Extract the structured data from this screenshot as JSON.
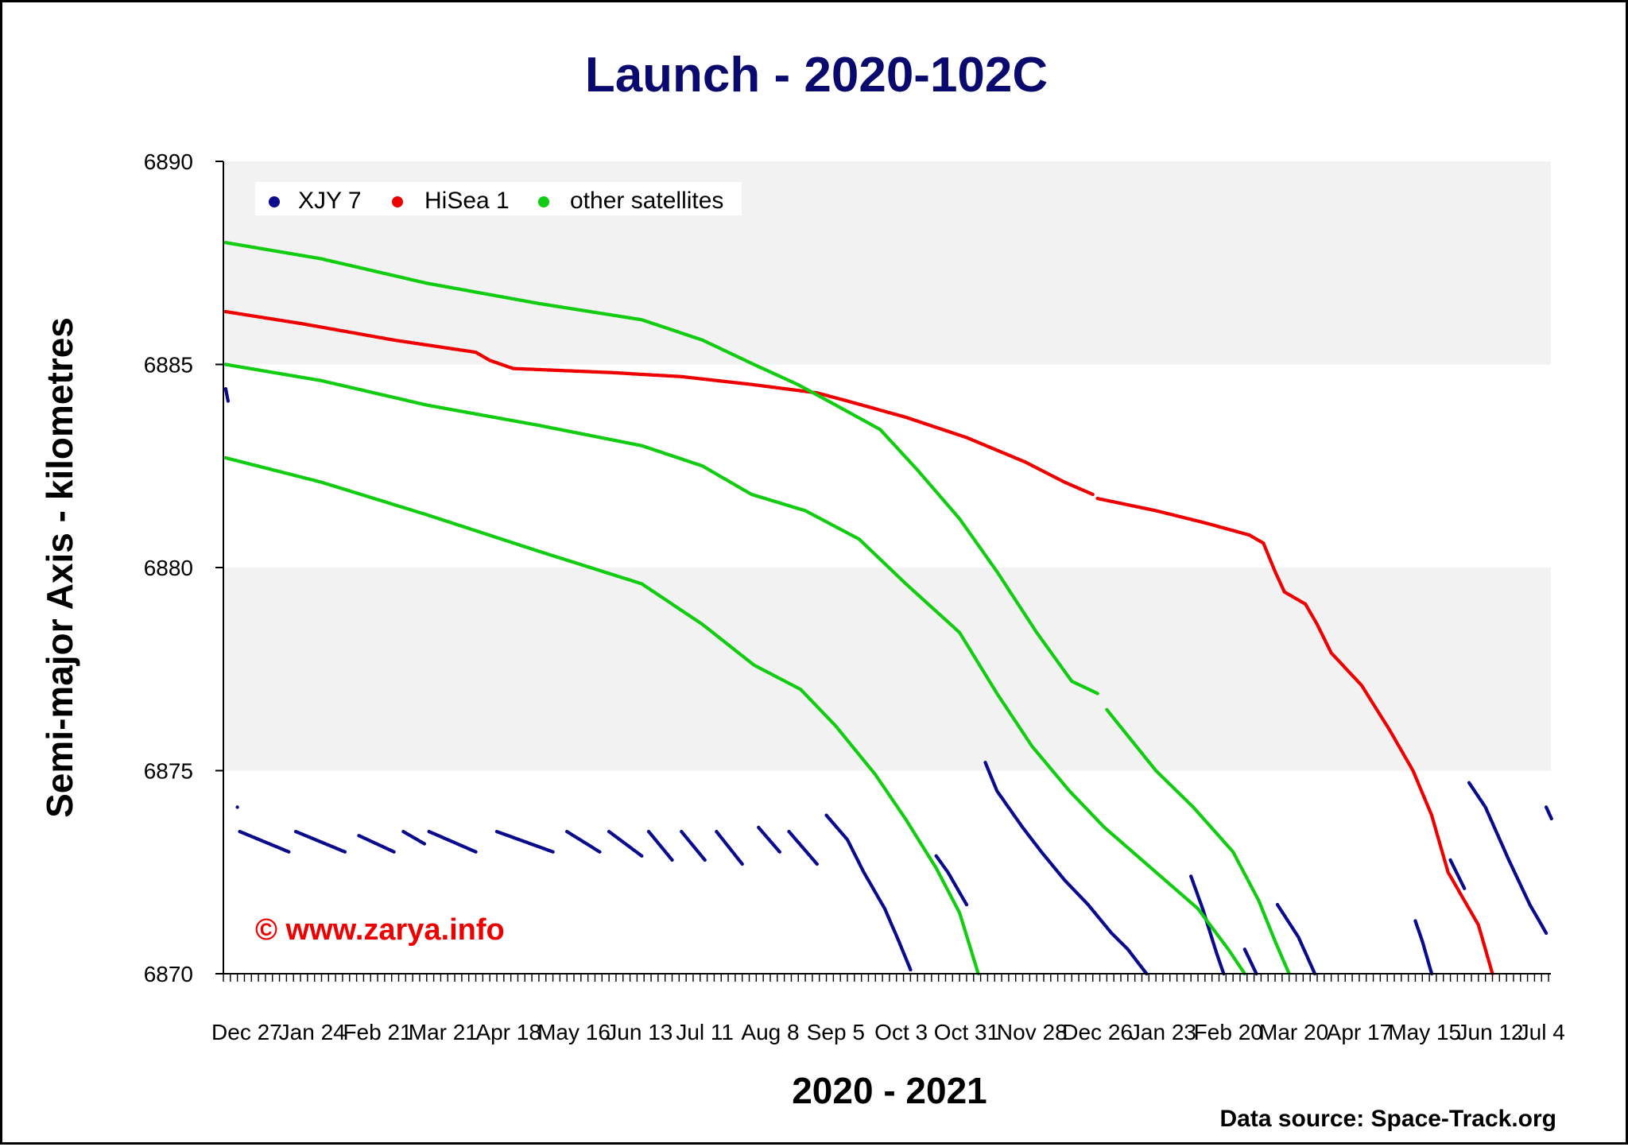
{
  "chart_data": {
    "type": "scatter",
    "title": "Launch - 2020-102C",
    "xlabel": "2020 - 2021",
    "ylabel": "Semi-major Axis - kilometres",
    "ylim": [
      6870,
      6890
    ],
    "yticks": [
      6870,
      6875,
      6880,
      6885,
      6890
    ],
    "xlim": [
      "2020-12-17",
      "2022-07-08"
    ],
    "xtick_labels": [
      {
        "date": "2020-12-27",
        "label": "Dec 27"
      },
      {
        "date": "2021-01-24",
        "label": "Jan 24"
      },
      {
        "date": "2021-02-21",
        "label": "Feb 21"
      },
      {
        "date": "2021-03-21",
        "label": "Mar 21"
      },
      {
        "date": "2021-04-18",
        "label": "Apr 18"
      },
      {
        "date": "2021-05-16",
        "label": "May 16"
      },
      {
        "date": "2021-06-13",
        "label": "Jun 13"
      },
      {
        "date": "2021-07-11",
        "label": "Jul 11"
      },
      {
        "date": "2021-08-08",
        "label": "Aug 8"
      },
      {
        "date": "2021-09-05",
        "label": "Sep 5"
      },
      {
        "date": "2021-10-03",
        "label": "Oct 3"
      },
      {
        "date": "2021-10-31",
        "label": "Oct 31"
      },
      {
        "date": "2021-11-28",
        "label": "Nov 28"
      },
      {
        "date": "2021-12-26",
        "label": "Dec 26"
      },
      {
        "date": "2022-01-23",
        "label": "Jan 23"
      },
      {
        "date": "2022-02-20",
        "label": "Feb 20"
      },
      {
        "date": "2022-03-20",
        "label": "Mar 20"
      },
      {
        "date": "2022-04-17",
        "label": "Apr 17"
      },
      {
        "date": "2022-05-15",
        "label": "May 15"
      },
      {
        "date": "2022-06-12",
        "label": "Jun 12"
      },
      {
        "date": "2022-07-04",
        "label": "Jul 4"
      }
    ],
    "grid": {
      "horizontal_bands": true,
      "band_color": "#f2f2f2"
    },
    "legend": {
      "placement": "top-left"
    },
    "series": [
      {
        "name": "XJY 7",
        "color": "#0a0a8c",
        "segments": [
          [
            [
              "2020-12-18",
              6884.4
            ],
            [
              "2020-12-19",
              6884.1
            ]
          ],
          [
            [
              "2020-12-23",
              6874.1
            ]
          ],
          [
            [
              "2020-12-24",
              6873.5
            ],
            [
              "2021-01-14",
              6873.0
            ]
          ],
          [
            [
              "2021-01-17",
              6873.5
            ],
            [
              "2021-02-07",
              6873.0
            ]
          ],
          [
            [
              "2021-02-13",
              6873.4
            ],
            [
              "2021-02-28",
              6873.0
            ]
          ],
          [
            [
              "2021-03-04",
              6873.5
            ],
            [
              "2021-03-13",
              6873.2
            ]
          ],
          [
            [
              "2021-03-15",
              6873.5
            ],
            [
              "2021-04-04",
              6873.0
            ]
          ],
          [
            [
              "2021-04-13",
              6873.5
            ],
            [
              "2021-05-07",
              6873.0
            ]
          ],
          [
            [
              "2021-05-13",
              6873.5
            ],
            [
              "2021-05-27",
              6873.0
            ]
          ],
          [
            [
              "2021-05-31",
              6873.5
            ],
            [
              "2021-06-14",
              6872.9
            ]
          ],
          [
            [
              "2021-06-17",
              6873.5
            ],
            [
              "2021-06-27",
              6872.8
            ]
          ],
          [
            [
              "2021-07-01",
              6873.5
            ],
            [
              "2021-07-11",
              6872.8
            ]
          ],
          [
            [
              "2021-07-16",
              6873.5
            ],
            [
              "2021-07-27",
              6872.7
            ]
          ],
          [
            [
              "2021-08-03",
              6873.6
            ],
            [
              "2021-08-12",
              6873.0
            ]
          ],
          [
            [
              "2021-08-16",
              6873.5
            ],
            [
              "2021-08-28",
              6872.7
            ]
          ],
          [
            [
              "2021-09-01",
              6873.9
            ],
            [
              "2021-09-10",
              6873.3
            ],
            [
              "2021-09-17",
              6872.5
            ],
            [
              "2021-09-26",
              6871.6
            ],
            [
              "2021-10-02",
              6870.8
            ],
            [
              "2021-10-07",
              6870.1
            ]
          ],
          [
            [
              "2021-10-18",
              6872.9
            ],
            [
              "2021-10-23",
              6872.5
            ],
            [
              "2021-10-31",
              6871.7
            ]
          ],
          [
            [
              "2021-11-08",
              6875.2
            ],
            [
              "2021-11-13",
              6874.5
            ],
            [
              "2021-11-24",
              6873.6
            ],
            [
              "2021-12-02",
              6873.0
            ],
            [
              "2021-12-12",
              6872.3
            ],
            [
              "2021-12-22",
              6871.7
            ],
            [
              "2022-01-01",
              6871.0
            ],
            [
              "2022-01-08",
              6870.6
            ],
            [
              "2022-01-16",
              6870.0
            ]
          ],
          [
            [
              "2022-02-04",
              6872.4
            ],
            [
              "2022-02-09",
              6871.6
            ],
            [
              "2022-02-15",
              6870.5
            ],
            [
              "2022-02-18",
              6870.0
            ]
          ],
          [
            [
              "2022-02-27",
              6870.6
            ],
            [
              "2022-03-04",
              6870.0
            ]
          ],
          [
            [
              "2022-03-13",
              6871.7
            ],
            [
              "2022-03-22",
              6870.9
            ],
            [
              "2022-03-29",
              6870.0
            ]
          ],
          [
            [
              "2022-05-11",
              6871.3
            ],
            [
              "2022-05-14",
              6870.8
            ],
            [
              "2022-05-18",
              6870.0
            ]
          ],
          [
            [
              "2022-05-26",
              6872.8
            ],
            [
              "2022-06-01",
              6872.1
            ]
          ],
          [
            [
              "2022-06-03",
              6874.7
            ],
            [
              "2022-06-10",
              6874.1
            ],
            [
              "2022-06-20",
              6872.8
            ],
            [
              "2022-06-29",
              6871.7
            ],
            [
              "2022-07-06",
              6871.0
            ]
          ],
          [
            [
              "2022-07-06",
              6874.1
            ],
            [
              "2022-07-10",
              6873.6
            ],
            [
              "2022-07-15",
              6872.9
            ]
          ]
        ]
      },
      {
        "name": "HiSea 1",
        "color": "#ee0000",
        "segments": [
          [
            [
              "2020-12-18",
              6886.3
            ],
            [
              "2021-01-20",
              6886.0
            ],
            [
              "2021-02-28",
              6885.6
            ],
            [
              "2021-04-04",
              6885.3
            ],
            [
              "2021-04-10",
              6885.1
            ],
            [
              "2021-04-20",
              6884.9
            ],
            [
              "2021-06-01",
              6884.8
            ],
            [
              "2021-07-01",
              6884.7
            ],
            [
              "2021-08-01",
              6884.5
            ],
            [
              "2021-08-28",
              6884.3
            ],
            [
              "2021-09-10",
              6884.1
            ],
            [
              "2021-10-05",
              6883.7
            ],
            [
              "2021-10-31",
              6883.2
            ],
            [
              "2021-11-25",
              6882.6
            ],
            [
              "2021-12-12",
              6882.1
            ],
            [
              "2021-12-24",
              6881.8
            ]
          ],
          [
            [
              "2021-12-26",
              6881.7
            ],
            [
              "2022-01-20",
              6881.4
            ],
            [
              "2022-02-10",
              6881.1
            ],
            [
              "2022-03-01",
              6880.8
            ],
            [
              "2022-03-07",
              6880.6
            ],
            [
              "2022-03-12",
              6879.9
            ],
            [
              "2022-03-16",
              6879.4
            ],
            [
              "2022-03-25",
              6879.1
            ],
            [
              "2022-03-30",
              6878.6
            ],
            [
              "2022-04-05",
              6877.9
            ],
            [
              "2022-04-18",
              6877.1
            ],
            [
              "2022-04-30",
              6876.0
            ],
            [
              "2022-05-10",
              6875.0
            ],
            [
              "2022-05-18",
              6873.9
            ],
            [
              "2022-05-25",
              6872.5
            ],
            [
              "2022-06-01",
              6871.8
            ],
            [
              "2022-06-07",
              6871.2
            ],
            [
              "2022-06-13",
              6870.0
            ]
          ]
        ]
      },
      {
        "name": "other satellites",
        "color": "#11cc11",
        "segments": [
          [
            [
              "2020-12-18",
              6888.0
            ],
            [
              "2021-01-28",
              6887.6
            ],
            [
              "2021-03-14",
              6887.0
            ],
            [
              "2021-05-01",
              6886.5
            ],
            [
              "2021-06-14",
              6886.1
            ],
            [
              "2021-07-10",
              6885.6
            ],
            [
              "2021-08-01",
              6885.0
            ],
            [
              "2021-08-20",
              6884.5
            ],
            [
              "2021-09-05",
              6884.0
            ],
            [
              "2021-09-24",
              6883.4
            ],
            [
              "2021-10-10",
              6882.4
            ],
            [
              "2021-10-28",
              6881.2
            ],
            [
              "2021-11-13",
              6879.9
            ],
            [
              "2021-11-30",
              6878.4
            ],
            [
              "2021-12-15",
              6877.2
            ],
            [
              "2021-12-26",
              6876.9
            ]
          ],
          [
            [
              "2021-12-30",
              6876.5
            ],
            [
              "2022-01-20",
              6875.0
            ],
            [
              "2022-02-05",
              6874.1
            ],
            [
              "2022-02-22",
              6873.0
            ],
            [
              "2022-03-05",
              6871.8
            ],
            [
              "2022-03-12",
              6870.8
            ],
            [
              "2022-03-18",
              6870.0
            ]
          ],
          [
            [
              "2020-12-18",
              6885.0
            ],
            [
              "2021-01-28",
              6884.6
            ],
            [
              "2021-03-14",
              6884.0
            ],
            [
              "2021-05-01",
              6883.5
            ],
            [
              "2021-06-14",
              6883.0
            ],
            [
              "2021-07-10",
              6882.5
            ],
            [
              "2021-07-31",
              6881.8
            ],
            [
              "2021-08-23",
              6881.4
            ],
            [
              "2021-09-15",
              6880.7
            ],
            [
              "2021-10-05",
              6879.6
            ],
            [
              "2021-10-28",
              6878.4
            ],
            [
              "2021-11-13",
              6876.9
            ],
            [
              "2021-11-28",
              6875.6
            ],
            [
              "2021-12-14",
              6874.5
            ],
            [
              "2021-12-29",
              6873.6
            ],
            [
              "2022-01-20",
              6872.5
            ],
            [
              "2022-02-07",
              6871.6
            ],
            [
              "2022-02-20",
              6870.6
            ],
            [
              "2022-02-27",
              6870.0
            ]
          ],
          [
            [
              "2020-12-18",
              6882.7
            ],
            [
              "2021-01-28",
              6882.1
            ],
            [
              "2021-03-14",
              6881.3
            ],
            [
              "2021-05-01",
              6880.4
            ],
            [
              "2021-06-14",
              6879.6
            ],
            [
              "2021-07-10",
              6878.6
            ],
            [
              "2021-08-01",
              6877.6
            ],
            [
              "2021-08-21",
              6877.0
            ],
            [
              "2021-09-05",
              6876.1
            ],
            [
              "2021-09-22",
              6874.9
            ],
            [
              "2021-10-05",
              6873.8
            ],
            [
              "2021-10-18",
              6872.6
            ],
            [
              "2021-10-28",
              6871.5
            ],
            [
              "2021-11-05",
              6870.0
            ]
          ]
        ]
      }
    ],
    "watermark": "© www.zarya.info",
    "source_note": "Data source: Space-Track.org"
  }
}
